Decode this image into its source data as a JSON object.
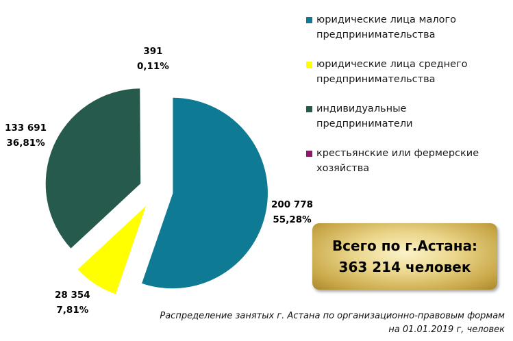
{
  "chart_data": {
    "type": "pie",
    "slices": [
      {
        "name": "юридические лица малого предпринимательства",
        "value": "200 778",
        "percent": "55,28%",
        "share": 55.28,
        "color": "#0e7a93"
      },
      {
        "name": "юридические лица среднего предпринимательства",
        "value": "28 354",
        "percent": "7,81%",
        "share": 7.81,
        "color": "#ffff00"
      },
      {
        "name": "индивидуальные предприниматели",
        "value": "133 691",
        "percent": "36,81%",
        "share": 36.81,
        "color": "#265a4c"
      },
      {
        "name": "крестьянские или фермерские хозяйства",
        "value": "391",
        "percent": "0,11%",
        "share": 0.11,
        "color": "#8b1a6b"
      }
    ],
    "legend_position": "right"
  },
  "legend": {
    "items": [
      {
        "line1": "юридические лица малого",
        "line2": "предпринимательства",
        "color": "#0e7a93"
      },
      {
        "line1": "юридические лица среднего",
        "line2": "предпринимательства",
        "color": "#ffff00"
      },
      {
        "line1": "индивидуальные",
        "line2": "предприниматели",
        "color": "#265a4c"
      },
      {
        "line1": "крестьянские или фермерские",
        "line2": "хозяйства",
        "color": "#8b1a6b"
      }
    ]
  },
  "total": {
    "line1": "Всего по г.Астана:",
    "line2": "363 214 человек"
  },
  "caption": {
    "line1": "Распределение занятых г. Астана по организационно-правовым формам",
    "line2": "на 01.01.2019  г, человек"
  }
}
